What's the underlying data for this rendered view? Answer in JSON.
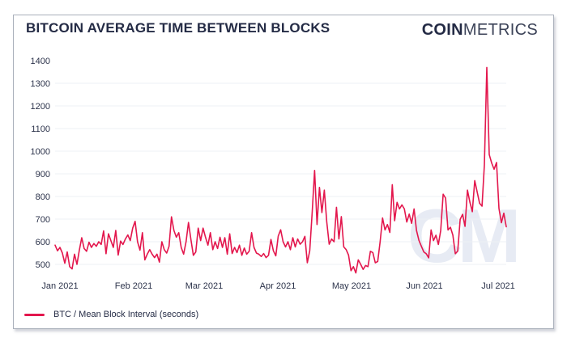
{
  "header": {
    "title": "BITCOIN AVERAGE TIME BETWEEN BLOCKS",
    "logo_bold": "COIN",
    "logo_light": "METRICS"
  },
  "watermark_text": "CM",
  "legend": {
    "label": "BTC / Mean Block Interval (seconds)",
    "swatch_color": "#e3174d"
  },
  "colors": {
    "line": "#e3174d",
    "text_dark": "#242b45",
    "grid": "#eef0f4",
    "card_border": "#aab0bb"
  },
  "chart_data": {
    "type": "line",
    "title": "BITCOIN AVERAGE TIME BETWEEN BLOCKS",
    "xlabel": "",
    "ylabel": "",
    "unit": "seconds",
    "grid": "horizontal",
    "legend_position": "bottom-left",
    "x_axis": {
      "tick_labels": [
        "Jan 2021",
        "Feb 2021",
        "Mar 2021",
        "Apr 2021",
        "May 2021",
        "Jun 2021",
        "Jul 2021"
      ]
    },
    "y_axis": {
      "ticks": [
        500,
        600,
        700,
        800,
        900,
        1000,
        1100,
        1200,
        1300,
        1400
      ],
      "range": [
        460,
        1400
      ]
    },
    "series": [
      {
        "name": "BTC / Mean Block Interval (seconds)",
        "color": "#e3174d",
        "cadence": "daily",
        "values": [
          585,
          560,
          575,
          550,
          505,
          555,
          490,
          480,
          545,
          500,
          562,
          618,
          570,
          558,
          598,
          575,
          592,
          580,
          600,
          588,
          648,
          547,
          635,
          605,
          575,
          650,
          541,
          603,
          588,
          612,
          630,
          605,
          660,
          690,
          600,
          563,
          640,
          520,
          545,
          565,
          545,
          530,
          545,
          510,
          600,
          565,
          550,
          580,
          710,
          650,
          620,
          640,
          575,
          545,
          600,
          685,
          610,
          540,
          555,
          660,
          605,
          660,
          620,
          585,
          640,
          565,
          600,
          570,
          620,
          575,
          618,
          545,
          635,
          548,
          575,
          552,
          585,
          540,
          572,
          545,
          558,
          640,
          575,
          550,
          545,
          535,
          548,
          530,
          540,
          610,
          560,
          538,
          625,
          653,
          600,
          577,
          600,
          565,
          618,
          577,
          612,
          589,
          600,
          624,
          507,
          560,
          729,
          915,
          676,
          840,
          729,
          828,
          688,
          589,
          612,
          600,
          752,
          612,
          711,
          577,
          565,
          541,
          472,
          490,
          462,
          520,
          500,
          478,
          495,
          490,
          558,
          552,
          507,
          513,
          600,
          705,
          652,
          676,
          641,
          852,
          693,
          774,
          745,
          763,
          745,
          687,
          722,
          681,
          745,
          650,
          606,
          580,
          555,
          547,
          529,
          652,
          605,
          629,
          588,
          650,
          810,
          793,
          652,
          664,
          629,
          547,
          559,
          699,
          721,
          668,
          828,
          775,
          733,
          870,
          820,
          770,
          757,
          940,
          1370,
          985,
          948,
          920,
          950,
          747,
          684,
          726,
          666
        ]
      }
    ]
  }
}
